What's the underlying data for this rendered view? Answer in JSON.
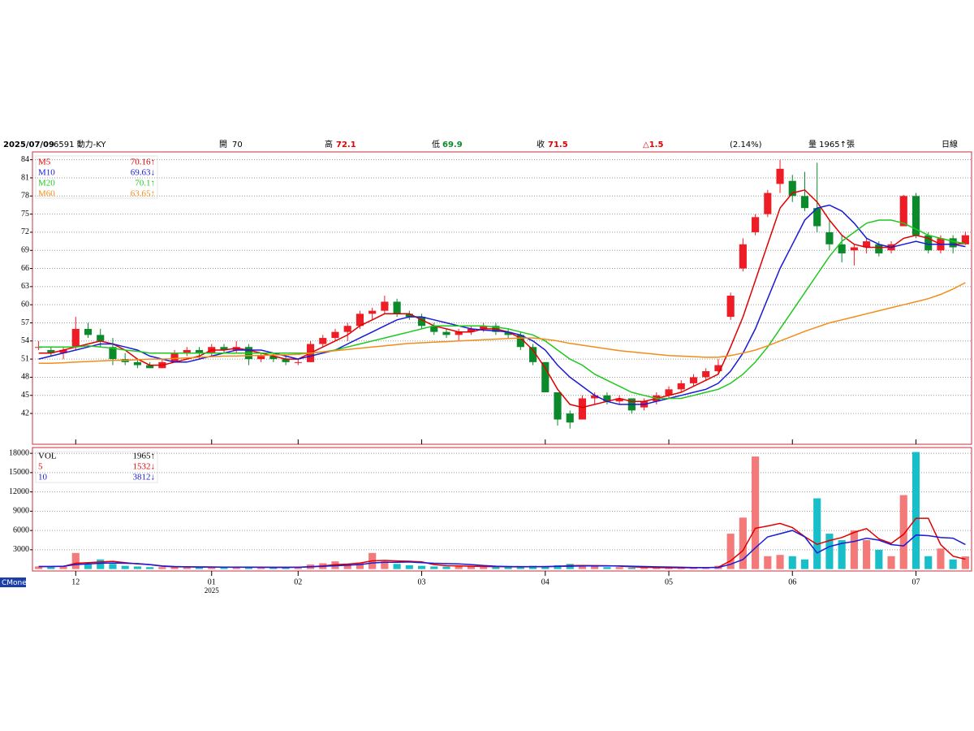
{
  "header": {
    "date": "2025/07/09",
    "symbol": "6591 動力-KY",
    "open_label": "開",
    "open": "70",
    "high_label": "高",
    "high": "72.1",
    "low_label": "低",
    "low": "69.9",
    "close_label": "收",
    "close": "71.5",
    "change": "△1.5",
    "change_pct": "(2.14%)",
    "volume": "量 1965↑張",
    "period": "日線"
  },
  "brand": "CMoney",
  "chart_data": [
    {
      "type": "candlestick",
      "up_color": "#ee1c25",
      "down_color": "#0b8a2b",
      "grid": true,
      "ylim": [
        36.9,
        85.3
      ],
      "yticks": [
        42,
        45,
        48,
        51,
        54,
        57,
        60,
        63,
        66,
        69,
        72,
        75,
        78,
        81,
        84
      ],
      "categories": [
        null,
        null,
        null,
        null,
        null,
        null,
        null,
        null,
        null,
        null,
        null,
        null,
        null,
        null,
        null,
        null,
        null,
        null,
        null,
        null,
        null,
        null,
        null,
        null,
        null,
        null,
        null,
        null,
        null,
        null,
        null,
        null,
        null,
        null,
        null,
        null,
        null,
        null,
        null,
        null,
        null,
        null,
        null,
        null,
        null,
        null,
        null,
        null,
        null,
        null,
        null,
        null,
        null,
        null,
        null,
        null,
        null,
        null,
        null,
        null,
        null,
        null,
        null,
        null,
        null,
        null,
        null,
        null,
        null,
        null,
        null,
        null,
        null,
        null,
        null,
        null
      ],
      "open": [
        53,
        52.5,
        52,
        53,
        56,
        55,
        53,
        51,
        50.5,
        50,
        49.5,
        50.5,
        52,
        52.5,
        52,
        53,
        52.5,
        53,
        51,
        51.5,
        51,
        50.5,
        50.5,
        53.5,
        54.5,
        55.5,
        56.5,
        58.5,
        59,
        60.5,
        58.5,
        58,
        56.5,
        55.5,
        55,
        55.5,
        56,
        56.5,
        55.5,
        55,
        53,
        50.5,
        45.5,
        42,
        41,
        44.5,
        45,
        44,
        44.5,
        43,
        44,
        45,
        46,
        47,
        48,
        49,
        58,
        66,
        72,
        75,
        80,
        80.5,
        78,
        76,
        72,
        70,
        69,
        69.5,
        70,
        69,
        73,
        78,
        71.5,
        69,
        71,
        70
      ],
      "high": [
        54,
        53,
        53,
        58,
        57,
        56,
        54.5,
        52,
        51,
        50.5,
        51,
        52.5,
        53,
        53,
        53.5,
        53.5,
        54,
        53.5,
        52,
        52,
        51.5,
        51,
        54,
        55,
        56,
        57,
        59,
        59.5,
        61.5,
        61,
        59,
        58.5,
        57,
        56,
        56,
        56.5,
        57,
        57,
        56,
        55.5,
        53.5,
        50.5,
        45.5,
        42.5,
        45,
        45.5,
        45.5,
        45,
        44.5,
        44.5,
        45.5,
        46.5,
        47.5,
        48.5,
        49.5,
        51,
        62,
        71,
        75,
        79,
        84,
        81.5,
        82,
        83.5,
        74,
        71.5,
        70,
        71,
        70.5,
        70.5,
        78.2,
        78.5,
        72,
        71.5,
        71.5,
        72.1
      ],
      "low": [
        52.5,
        51.5,
        51,
        52.5,
        54.5,
        53,
        50,
        50,
        49.5,
        49.5,
        49.5,
        50.5,
        51.5,
        51,
        51.5,
        52,
        52,
        50,
        50.5,
        50.5,
        50,
        50,
        50.5,
        53,
        54,
        54,
        56,
        57.5,
        58.5,
        58,
        57.5,
        56,
        55,
        54.5,
        54,
        55,
        55.5,
        55,
        54.5,
        52.5,
        50,
        45.5,
        40,
        39.5,
        41,
        43.5,
        43.5,
        43.5,
        42,
        42.5,
        43.5,
        44.5,
        45.5,
        46.5,
        47.5,
        48.5,
        57.5,
        65.5,
        71.5,
        74.5,
        78.5,
        77,
        75.5,
        72,
        69,
        67,
        66.5,
        68.5,
        68,
        68.5,
        73,
        71,
        68.5,
        68.5,
        68.5,
        69.9
      ],
      "close": [
        53,
        52,
        52.5,
        56,
        55,
        54,
        51,
        50.5,
        50,
        49.5,
        50.5,
        52,
        52.5,
        52,
        53,
        52.5,
        53,
        51,
        51.5,
        51,
        50.5,
        50.5,
        53.5,
        54.5,
        55.5,
        56.5,
        58.5,
        59,
        60.5,
        58.5,
        58,
        56.5,
        55.5,
        55,
        55.5,
        56,
        56.5,
        55.5,
        55,
        53,
        50.5,
        45.5,
        41,
        40.5,
        44.5,
        45,
        44,
        44.5,
        42.5,
        44,
        45,
        46,
        47,
        48,
        49,
        50,
        61.5,
        70,
        74.5,
        78.5,
        82.5,
        78,
        76,
        73,
        70,
        68.5,
        69.5,
        70.5,
        68.5,
        70,
        78,
        71.5,
        69,
        71,
        69.5,
        71.5
      ],
      "series": [
        {
          "name": "M5",
          "type": "line",
          "color": "#e00000",
          "legend_value": "70.16↑",
          "values": [
            52,
            52,
            52.5,
            53,
            53.5,
            54,
            53.5,
            52.5,
            51,
            50,
            50,
            50.5,
            51,
            51.5,
            52.5,
            52.5,
            52.8,
            52.5,
            52,
            51.5,
            51,
            51,
            52,
            53,
            54,
            55,
            56.5,
            57.5,
            58.5,
            58.5,
            58.5,
            57.5,
            56.5,
            56,
            55.5,
            55.5,
            56,
            56,
            55.5,
            54.5,
            52.5,
            49.5,
            46,
            43.5,
            43,
            43.5,
            44,
            44.5,
            44,
            44,
            44.5,
            45,
            45.5,
            46.5,
            47.5,
            48.5,
            53,
            58,
            64,
            70,
            76,
            78.5,
            79,
            77,
            74,
            71.5,
            70,
            69.5,
            69.5,
            69.5,
            71,
            71.5,
            71,
            70,
            70,
            70.16
          ]
        },
        {
          "name": "M10",
          "type": "line",
          "color": "#1a1ad8",
          "legend_value": "69.63↓",
          "values": [
            51,
            51.5,
            52,
            52.5,
            53,
            53.5,
            53.5,
            53,
            52.5,
            51.5,
            51,
            50.5,
            50.5,
            51,
            51.5,
            52,
            52.5,
            52.5,
            52.5,
            52,
            51.5,
            51,
            51.5,
            52,
            52.5,
            53.5,
            54.5,
            55.5,
            56.5,
            57.5,
            58,
            58,
            57.5,
            57,
            56.5,
            56,
            55.8,
            55.7,
            55.5,
            55,
            54,
            52.5,
            50,
            48,
            46.5,
            45,
            44,
            43.5,
            43.5,
            43.5,
            44,
            44.5,
            45,
            45.5,
            46,
            47,
            49,
            52,
            56,
            61,
            66,
            70,
            74,
            76,
            76.5,
            75.5,
            73.5,
            71,
            70,
            69.5,
            70,
            70.5,
            70,
            70,
            70,
            69.63
          ]
        },
        {
          "name": "M20",
          "type": "line",
          "color": "#1ec81e",
          "legend_value": "70.1↑",
          "values": [
            53,
            53,
            53,
            53,
            53.2,
            53,
            52.8,
            52.5,
            52.3,
            52,
            52,
            52,
            52,
            52,
            52,
            52,
            52,
            52,
            52,
            52,
            52,
            52,
            52,
            52.2,
            52.5,
            53,
            53.5,
            54,
            54.5,
            55,
            55.5,
            56,
            56.5,
            56.5,
            56.5,
            56.5,
            56.5,
            56.3,
            56,
            55.5,
            55,
            54,
            52.5,
            51,
            50,
            48.5,
            47.5,
            46.5,
            45.5,
            45,
            44.5,
            44.5,
            44.5,
            45,
            45.5,
            46,
            47,
            48.5,
            50.5,
            53,
            56,
            59,
            62,
            65,
            68,
            70.5,
            72,
            73.5,
            74,
            74,
            73.5,
            72.5,
            71.5,
            71,
            70.5,
            70.1
          ]
        },
        {
          "name": "M60",
          "type": "line",
          "color": "#f28c1a",
          "legend_value": "63.65↑",
          "values": [
            50.3,
            50.3,
            50.4,
            50.5,
            50.6,
            50.7,
            50.8,
            50.8,
            50.9,
            51,
            51,
            51.1,
            51.2,
            51.3,
            51.4,
            51.5,
            51.5,
            51.6,
            51.6,
            51.7,
            51.7,
            51.8,
            52,
            52.2,
            52.4,
            52.6,
            52.8,
            53,
            53.2,
            53.4,
            53.6,
            53.7,
            53.8,
            53.9,
            54,
            54.1,
            54.2,
            54.3,
            54.4,
            54.5,
            54.5,
            54.3,
            54,
            53.6,
            53.3,
            53,
            52.7,
            52.4,
            52.2,
            52,
            51.8,
            51.6,
            51.5,
            51.4,
            51.3,
            51.3,
            51.6,
            52,
            52.5,
            53.2,
            54,
            54.8,
            55.6,
            56.3,
            57,
            57.5,
            58,
            58.5,
            59,
            59.5,
            60,
            60.5,
            61,
            61.7,
            62.6,
            63.65
          ]
        }
      ]
    },
    {
      "type": "bar",
      "up_color": "#f47a7a",
      "down_color": "#18bfc8",
      "grid": true,
      "ylim": [
        -300,
        18900
      ],
      "yticks": [
        3000,
        6000,
        9000,
        12000,
        15000,
        18000
      ],
      "xticks": [
        {
          "value": 3,
          "label": "12"
        },
        {
          "value": 14,
          "label": "01",
          "sublabel": "2025"
        },
        {
          "value": 21,
          "label": "02"
        },
        {
          "value": 31,
          "label": "03"
        },
        {
          "value": 41,
          "label": "04"
        },
        {
          "value": 51,
          "label": "05"
        },
        {
          "value": 61,
          "label": "06"
        },
        {
          "value": 71,
          "label": "07"
        }
      ],
      "series": [
        {
          "name": "VOL",
          "type": "bar",
          "color": "#000000",
          "legend_value": "1965↑",
          "values": [
            400,
            300,
            500,
            2500,
            800,
            1500,
            800,
            500,
            400,
            300,
            300,
            300,
            400,
            300,
            300,
            200,
            300,
            300,
            300,
            200,
            300,
            300,
            700,
            900,
            1200,
            800,
            1000,
            2500,
            1200,
            800,
            600,
            500,
            400,
            400,
            500,
            400,
            300,
            300,
            300,
            400,
            500,
            400,
            600,
            800,
            500,
            400,
            300,
            300,
            200,
            200,
            200,
            200,
            200,
            200,
            300,
            500,
            5500,
            8000,
            17500,
            2000,
            2200,
            2000,
            1500,
            11000,
            5500,
            4500,
            6000,
            4500,
            3000,
            2000,
            11500,
            18200,
            2000,
            3200,
            1500,
            1965
          ]
        },
        {
          "name": "5",
          "type": "line",
          "color": "#e00000",
          "legend_value": "1532↓",
          "values": [
            400,
            400,
            420,
            900,
            1000,
            1100,
            1200,
            1000,
            800,
            700,
            450,
            350,
            350,
            320,
            320,
            300,
            280,
            280,
            280,
            260,
            260,
            280,
            370,
            500,
            680,
            780,
            920,
            1280,
            1340,
            1260,
            1220,
            1120,
            700,
            540,
            480,
            440,
            400,
            380,
            360,
            340,
            360,
            380,
            420,
            540,
            560,
            540,
            520,
            460,
            340,
            280,
            240,
            200,
            200,
            200,
            220,
            280,
            1280,
            2880,
            6340,
            6700,
            7100,
            6440,
            5040,
            3840,
            4440,
            4900,
            5700,
            6300,
            4700,
            4000,
            5400,
            7900,
            7900,
            3800,
            2000,
            1532
          ]
        },
        {
          "name": "10",
          "type": "line",
          "color": "#1a1ad8",
          "legend_value": "3812↓",
          "values": [
            400,
            400,
            450,
            700,
            800,
            900,
            950,
            900,
            850,
            700,
            500,
            400,
            350,
            330,
            320,
            300,
            300,
            300,
            280,
            280,
            280,
            280,
            350,
            420,
            520,
            600,
            700,
            950,
            1050,
            1050,
            1100,
            1000,
            900,
            850,
            800,
            700,
            550,
            450,
            400,
            380,
            380,
            380,
            420,
            450,
            480,
            500,
            500,
            480,
            450,
            400,
            350,
            320,
            280,
            240,
            230,
            240,
            750,
            1500,
            3300,
            5000,
            5500,
            6000,
            5000,
            2500,
            3500,
            4000,
            4300,
            4800,
            4500,
            3800,
            3600,
            5300,
            5200,
            4900,
            4800,
            3812
          ]
        }
      ]
    }
  ]
}
